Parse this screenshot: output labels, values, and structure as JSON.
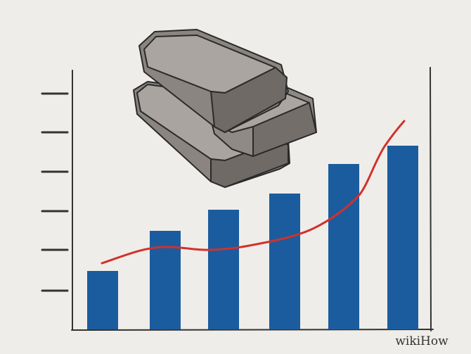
{
  "watermark": {
    "brand": "wikiHow"
  }
}
